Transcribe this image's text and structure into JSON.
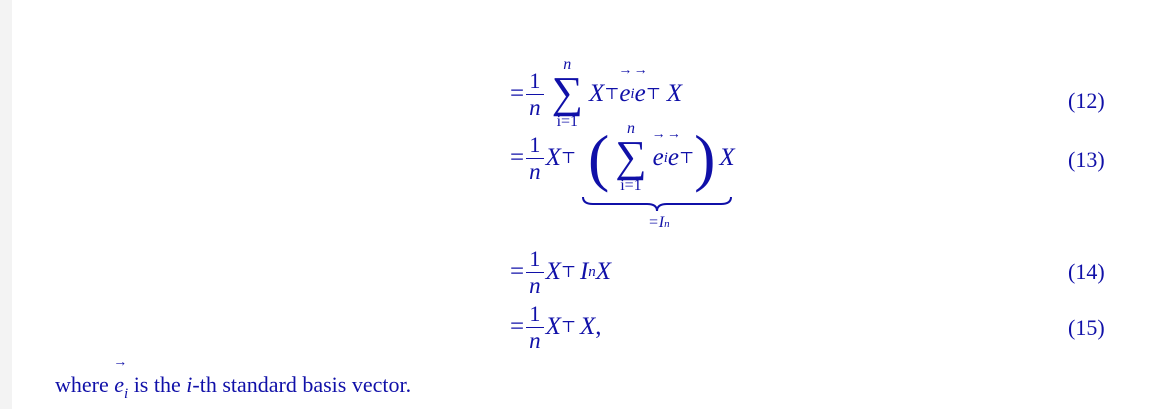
{
  "equations": [
    {
      "number": "(12)"
    },
    {
      "number": "(13)",
      "underbrace_label": "=I",
      "underbrace_sub": "n"
    },
    {
      "number": "(14)"
    },
    {
      "number": "(15)"
    }
  ],
  "symbols": {
    "eq": "=",
    "one": "1",
    "n": "n",
    "X": "X",
    "top": "⊤",
    "e": "e",
    "i": "i",
    "sum_lower": "i=1",
    "sum_upper": "n",
    "sigma": "∑",
    "I": "I",
    "comma": ","
  },
  "footer": {
    "text_before": "where ",
    "vec_e": "e",
    "sub_i": "i",
    "text_mid": " is the ",
    "italic_i": "i",
    "text_after": "-th standard basis vector."
  }
}
